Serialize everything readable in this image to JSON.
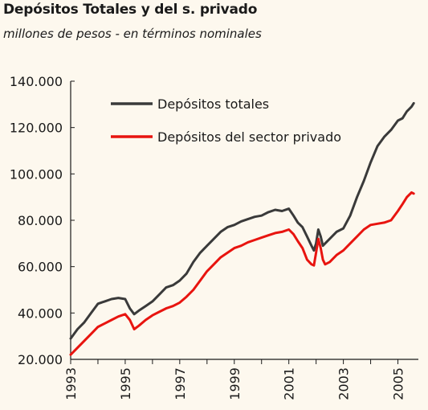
{
  "title": "Depósitos Totales y del s. privado",
  "subtitle": "millones de pesos - en términos nominales",
  "colors": {
    "background": "#fdf8ee",
    "total": "#3a3a3a",
    "private": "#e8140f",
    "axis": "#1a1a1a"
  },
  "chart_data": {
    "type": "line",
    "title": "Depósitos Totales y del s. privado",
    "subtitle": "millones de pesos - en términos nominales",
    "xlabel": "",
    "ylabel": "",
    "xlim": [
      1993,
      2005.75
    ],
    "ylim": [
      20000,
      140000
    ],
    "grid": false,
    "legend_position": "top-center",
    "yticks": [
      20000,
      40000,
      60000,
      80000,
      100000,
      120000,
      140000
    ],
    "ytick_labels": [
      "20.000",
      "40.000",
      "60.000",
      "80.000",
      "100.000",
      "120.000",
      "140.000"
    ],
    "xticks": [
      1993,
      1995,
      1997,
      1999,
      2001,
      2003,
      2005
    ],
    "xtick_labels": [
      "1993",
      "1995",
      "1997",
      "1999",
      "2001",
      "2003",
      "2005"
    ],
    "series": [
      {
        "name": "Depósitos totales",
        "color": "#3a3a3a",
        "x": [
          1993,
          1993.25,
          1993.5,
          1993.75,
          1994,
          1994.25,
          1994.5,
          1994.75,
          1995,
          1995.17,
          1995.33,
          1995.5,
          1995.75,
          1996,
          1996.25,
          1996.5,
          1996.75,
          1997,
          1997.25,
          1997.5,
          1997.75,
          1998,
          1998.25,
          1998.5,
          1998.75,
          1999,
          1999.25,
          1999.5,
          1999.75,
          2000,
          2000.25,
          2000.5,
          2000.75,
          2001,
          2001.17,
          2001.33,
          2001.5,
          2001.67,
          2001.83,
          2001.92,
          2002,
          2002.08,
          2002.17,
          2002.25,
          2002.33,
          2002.5,
          2002.75,
          2003,
          2003.25,
          2003.5,
          2003.75,
          2004,
          2004.25,
          2004.5,
          2004.75,
          2005,
          2005.17,
          2005.33,
          2005.5,
          2005.58
        ],
        "values": [
          29000,
          33000,
          36000,
          40000,
          44000,
          45000,
          46000,
          46500,
          46000,
          42000,
          39500,
          41000,
          43000,
          45000,
          48000,
          51000,
          52000,
          54000,
          57000,
          62000,
          66000,
          69000,
          72000,
          75000,
          77000,
          78000,
          79500,
          80500,
          81500,
          82000,
          83500,
          84500,
          84000,
          85000,
          82000,
          79000,
          77000,
          73000,
          69000,
          67000,
          70000,
          76000,
          73000,
          69000,
          70000,
          72000,
          75000,
          76500,
          82000,
          90000,
          97000,
          105000,
          112000,
          116000,
          119000,
          123000,
          124000,
          127000,
          129000,
          130500
        ]
      },
      {
        "name": "Depósitos del sector privado",
        "color": "#e8140f",
        "x": [
          1993,
          1993.25,
          1993.5,
          1993.75,
          1994,
          1994.25,
          1994.5,
          1994.75,
          1995,
          1995.17,
          1995.33,
          1995.5,
          1995.75,
          1996,
          1996.25,
          1996.5,
          1996.75,
          1997,
          1997.25,
          1997.5,
          1997.75,
          1998,
          1998.25,
          1998.5,
          1998.75,
          1999,
          1999.25,
          1999.5,
          1999.75,
          2000,
          2000.25,
          2000.5,
          2000.75,
          2001,
          2001.17,
          2001.33,
          2001.5,
          2001.67,
          2001.83,
          2001.92,
          2002,
          2002.08,
          2002.17,
          2002.25,
          2002.33,
          2002.5,
          2002.75,
          2003,
          2003.25,
          2003.5,
          2003.75,
          2004,
          2004.25,
          2004.5,
          2004.75,
          2005,
          2005.17,
          2005.33,
          2005.5,
          2005.58
        ],
        "values": [
          22000,
          25000,
          28000,
          31000,
          34000,
          35500,
          37000,
          38500,
          39500,
          37000,
          33000,
          34500,
          37000,
          39000,
          40500,
          42000,
          43000,
          44500,
          47000,
          50000,
          54000,
          58000,
          61000,
          64000,
          66000,
          68000,
          69000,
          70500,
          71500,
          72500,
          73500,
          74500,
          75000,
          76000,
          74000,
          71000,
          68000,
          63000,
          61000,
          60500,
          66000,
          72000,
          68000,
          63000,
          61000,
          62000,
          65000,
          67000,
          70000,
          73000,
          76000,
          78000,
          78500,
          79000,
          80000,
          84000,
          87000,
          90000,
          92000,
          91500
        ]
      }
    ]
  }
}
